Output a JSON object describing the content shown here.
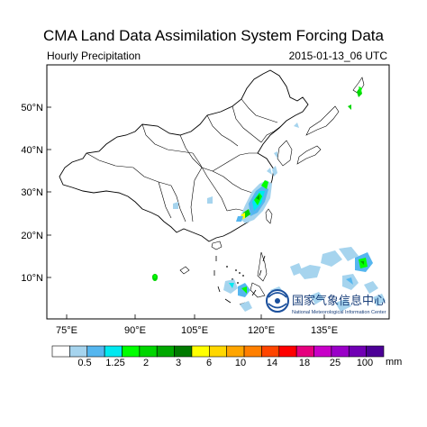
{
  "header": {
    "title": "CMA Land Data Assimilation System Forcing Data",
    "subtitle": "Hourly Precipitation",
    "timestamp": "2015-01-13_06 UTC"
  },
  "map": {
    "lon_ticks": [
      "75°E",
      "90°E",
      "105°E",
      "120°E",
      "135°E"
    ],
    "lat_ticks": [
      "50°N",
      "40°N",
      "30°N",
      "20°N",
      "10°N"
    ],
    "extent": {
      "lon": [
        70,
        145
      ],
      "lat": [
        4,
        57
      ]
    }
  },
  "colorbar": {
    "labels": [
      "0.5",
      "1.25",
      "2",
      "3",
      "6",
      "10",
      "14",
      "18",
      "25",
      "100"
    ],
    "unit": "mm",
    "colors": [
      "#ffffff",
      "#a6d4ee",
      "#55b6ef",
      "#00e8f0",
      "#00ff00",
      "#00d600",
      "#00a800",
      "#007a00",
      "#ffff00",
      "#ffd700",
      "#ffa500",
      "#ff7f00",
      "#ff4500",
      "#ff0000",
      "#e6007e",
      "#c800c8",
      "#9a00c8",
      "#7000b4",
      "#4c0096"
    ]
  },
  "watermark": {
    "org_cn": "国家气象信息中心",
    "org_en": "National Meteorological Information Center"
  }
}
